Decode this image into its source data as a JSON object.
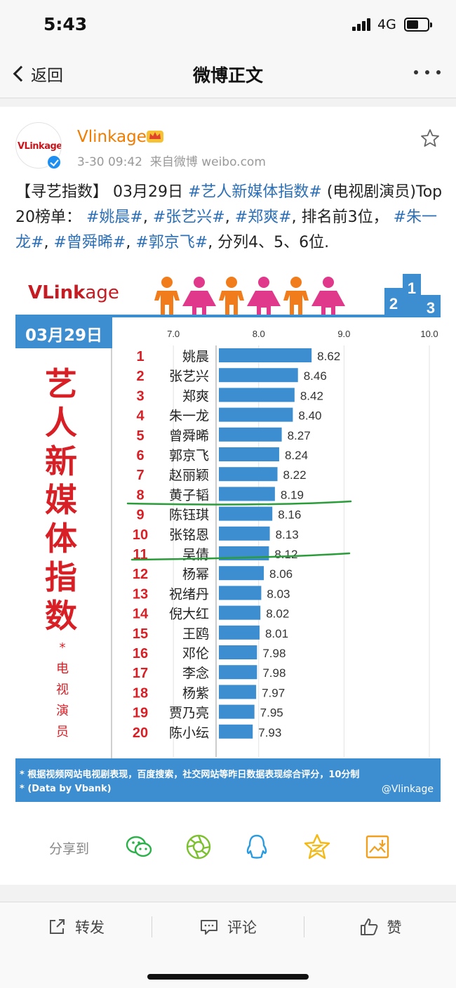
{
  "status_bar": {
    "time": "5:43",
    "network": "4G"
  },
  "nav": {
    "back_label": "返回",
    "title": "微博正文"
  },
  "post": {
    "avatar_text": "VLinkage",
    "user_name": "Vlinkage",
    "timestamp": "3-30 09:42",
    "source": "来自微博 weibo.com",
    "text_segments": [
      {
        "text": "【寻艺指数】 03月29日 ",
        "tag": false
      },
      {
        "text": "#艺人新媒体指数#",
        "tag": true
      },
      {
        "text": " (电视剧演员)Top 20榜单： ",
        "tag": false
      },
      {
        "text": "#姚晨#",
        "tag": true
      },
      {
        "text": ", ",
        "tag": false
      },
      {
        "text": "#张艺兴#",
        "tag": true
      },
      {
        "text": ", ",
        "tag": false
      },
      {
        "text": "#郑爽#",
        "tag": true
      },
      {
        "text": ", 排名前3位， ",
        "tag": false
      },
      {
        "text": "#朱一龙#",
        "tag": true
      },
      {
        "text": ", ",
        "tag": false
      },
      {
        "text": "#曾舜晞#",
        "tag": true
      },
      {
        "text": ", ",
        "tag": false
      },
      {
        "text": "#郭京飞#",
        "tag": true
      },
      {
        "text": ", 分列4、5、6位.",
        "tag": false
      }
    ]
  },
  "infographic": {
    "logo_main": "VLink",
    "logo_suffix": "age",
    "podium_labels": [
      "2",
      "1",
      "3"
    ],
    "date": "03月29日",
    "vertical_title": "艺人新媒体指数",
    "vertical_sub": "*电视演员",
    "footnote1": "* 根据视频网站电视剧表现，百度搜索，社交网站等昨日数据表现综合评分，10分制",
    "footnote2": "* (Data by Vbank)",
    "handle": "@Vlinkage"
  },
  "chart_data": {
    "type": "bar",
    "orientation": "horizontal",
    "xlim": [
      6.3,
      10.0
    ],
    "x_ticks": [
      "7.0",
      "8.0",
      "9.0",
      "10.0"
    ],
    "x_tick_values": [
      7.0,
      8.0,
      9.0,
      10.0
    ],
    "bar_color": "#3d8ed0",
    "rank_color": "#d81f26",
    "ranks": [
      "1",
      "2",
      "3",
      "4",
      "5",
      "6",
      "7",
      "8",
      "9",
      "10",
      "11",
      "12",
      "13",
      "14",
      "15",
      "16",
      "17",
      "18",
      "19",
      "20"
    ],
    "categories": [
      "姚晨",
      "张艺兴",
      "郑爽",
      "朱一龙",
      "曾舜晞",
      "郭京飞",
      "赵丽颖",
      "黄子韬",
      "陈钰琪",
      "张铭恩",
      "吴倩",
      "杨幂",
      "祝绪丹",
      "倪大红",
      "王鸥",
      "邓伦",
      "李念",
      "杨紫",
      "贾乃亮",
      "陈小纭"
    ],
    "values": [
      8.62,
      8.46,
      8.42,
      8.4,
      8.27,
      8.24,
      8.22,
      8.19,
      8.16,
      8.13,
      8.12,
      8.06,
      8.03,
      8.02,
      8.01,
      7.98,
      7.98,
      7.97,
      7.95,
      7.93
    ],
    "value_labels": [
      "8.62",
      "8.46",
      "8.42",
      "8.40",
      "8.27",
      "8.24",
      "8.22",
      "8.19",
      "8.16",
      "8.13",
      "8.12",
      "8.06",
      "8.03",
      "8.02",
      "8.01",
      "7.98",
      "7.98",
      "7.97",
      "7.95",
      "7.93"
    ]
  },
  "share": {
    "label": "分享到",
    "targets": [
      "wechat-icon",
      "moments-icon",
      "qq-icon",
      "qzone-icon",
      "save-image-icon"
    ]
  },
  "actions": {
    "repost": "转发",
    "comment": "评论",
    "like": "赞"
  }
}
